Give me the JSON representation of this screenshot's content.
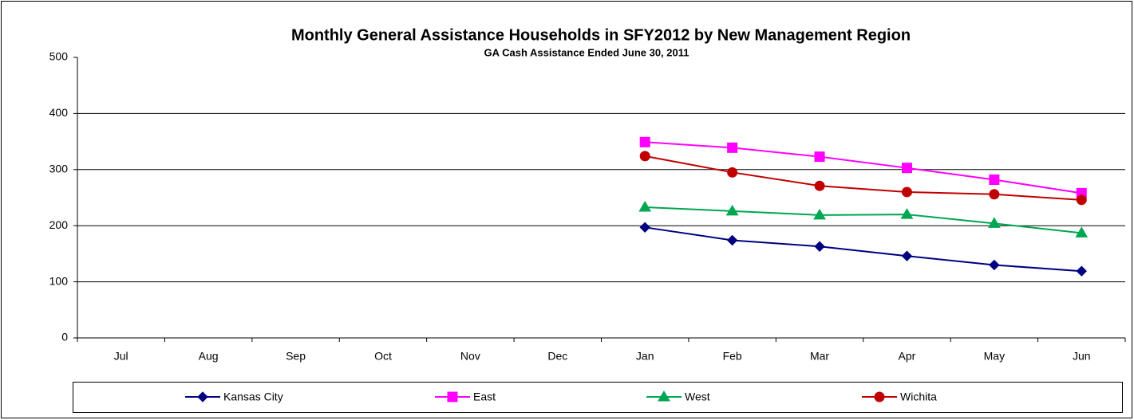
{
  "chart_data": {
    "type": "line",
    "title": "Monthly General Assistance Households in SFY2012 by New Management Region",
    "subtitle": "GA Cash Assistance Ended June 30, 2011",
    "categories": [
      "Jul",
      "Aug",
      "Sep",
      "Oct",
      "Nov",
      "Dec",
      "Jan",
      "Feb",
      "Mar",
      "Apr",
      "May",
      "Jun"
    ],
    "series": [
      {
        "name": "Kansas City",
        "color": "#000080",
        "marker": "diamond",
        "values": [
          null,
          null,
          null,
          null,
          null,
          null,
          197,
          174,
          163,
          146,
          130,
          119
        ]
      },
      {
        "name": "East",
        "color": "#ff00ff",
        "marker": "square",
        "values": [
          null,
          null,
          null,
          null,
          null,
          null,
          349,
          339,
          323,
          303,
          282,
          258
        ]
      },
      {
        "name": "West",
        "color": "#00a651",
        "marker": "triangle",
        "values": [
          null,
          null,
          null,
          null,
          null,
          null,
          233,
          226,
          219,
          220,
          204,
          187
        ]
      },
      {
        "name": "Wichita",
        "color": "#c00000",
        "marker": "circle",
        "values": [
          null,
          null,
          null,
          null,
          null,
          null,
          324,
          295,
          271,
          260,
          256,
          246
        ]
      }
    ],
    "ylim": [
      0,
      500
    ],
    "yticks": [
      0,
      100,
      200,
      300,
      400,
      500
    ],
    "grid": true,
    "legend": "bottom"
  }
}
